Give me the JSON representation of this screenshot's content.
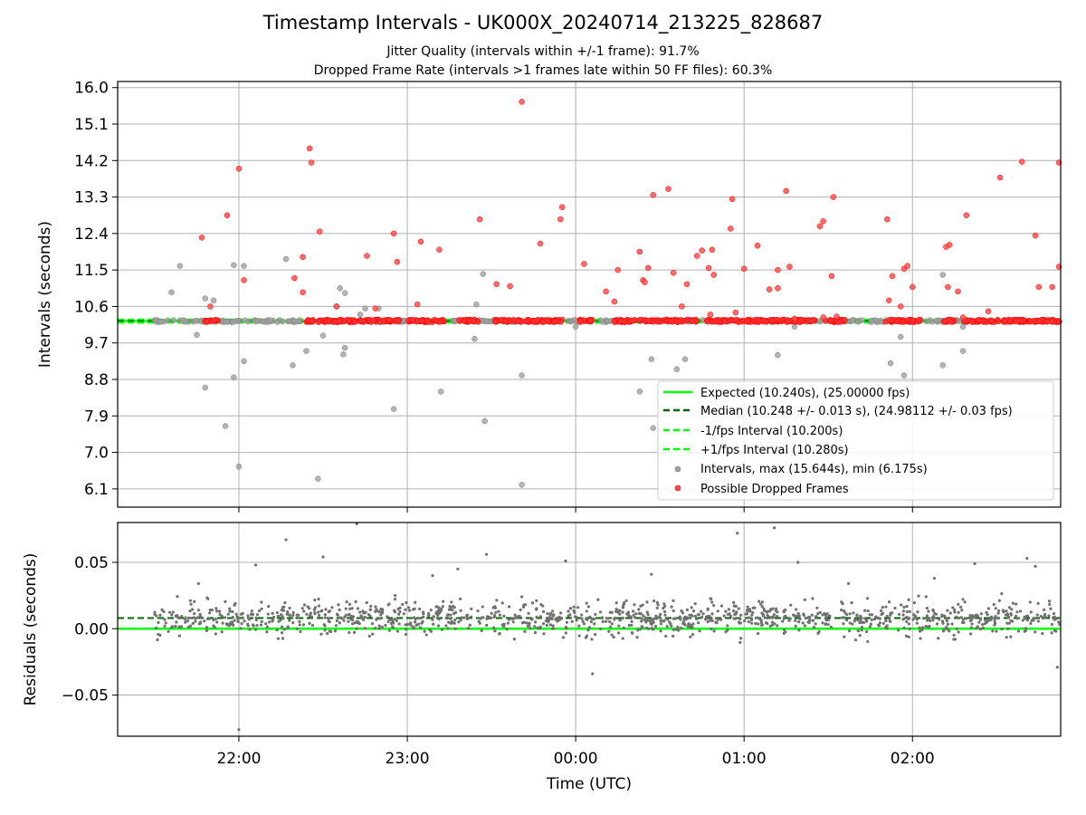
{
  "title": "Timestamp Intervals - UK000X_20240714_213225_828687",
  "subtitle_1": "Jitter Quality (intervals within +/-1 frame): 91.7%",
  "subtitle_2": "Dropped Frame Rate (intervals >1 frames late within 50 FF files): 60.3%",
  "colors": {
    "expected": "#00ff00",
    "median": "#006400",
    "interval_bounds": "#00ff00",
    "intervals": "#a0a0a0",
    "dropped": "#ff0000",
    "residuals": "#707070",
    "grid": "#b0b0b0"
  },
  "chart_data": [
    {
      "type": "scatter",
      "ylabel": "Intervals (seconds)",
      "xlabel": "",
      "x_unit": "hours UTC (21.5 = 21:30; >24 = next day)",
      "xlim": [
        21.28,
        26.88
      ],
      "ylim": [
        5.65,
        16.15
      ],
      "y_ticks": [
        "6.1",
        "7.0",
        "7.9",
        "8.8",
        "9.7",
        "10.6",
        "11.5",
        "12.4",
        "13.3",
        "14.2",
        "15.1",
        "16.0"
      ],
      "grid": true,
      "legend_position": "lower right",
      "legend": [
        "Expected (10.240s), (25.00000 fps)",
        "Median (10.248 +/- 0.013 s), (24.98112 +/- 0.03 fps)",
        "-1/fps Interval (10.200s)",
        "+1/fps Interval (10.280s)",
        "Intervals, max (15.644s), min (6.175s)",
        "Possible Dropped Frames"
      ],
      "reference_lines": {
        "expected": 10.24,
        "median": 10.248,
        "minus_1_fps": 10.2,
        "plus_1_fps": 10.28
      },
      "series": [
        {
          "name": "Intervals, max (15.644s), min (6.175s)",
          "points": [
            [
              21.6,
              10.95
            ],
            [
              21.65,
              11.6
            ],
            [
              21.75,
              9.9
            ],
            [
              21.8,
              8.6
            ],
            [
              21.8,
              10.8
            ],
            [
              21.85,
              10.75
            ],
            [
              21.92,
              7.65
            ],
            [
              21.97,
              11.62
            ],
            [
              21.97,
              8.85
            ],
            [
              22.0,
              6.65
            ],
            [
              22.03,
              11.6
            ],
            [
              22.03,
              9.25
            ],
            [
              22.28,
              11.77
            ],
            [
              22.32,
              9.15
            ],
            [
              22.4,
              9.5
            ],
            [
              22.47,
              6.35
            ],
            [
              22.5,
              9.88
            ],
            [
              22.58,
              10.6
            ],
            [
              22.6,
              11.05
            ],
            [
              22.62,
              9.42
            ],
            [
              22.63,
              9.58
            ],
            [
              22.63,
              10.93
            ],
            [
              22.72,
              10.4
            ],
            [
              22.75,
              10.55
            ],
            [
              22.83,
              10.55
            ],
            [
              22.92,
              8.07
            ],
            [
              23.2,
              8.5
            ],
            [
              23.4,
              9.8
            ],
            [
              23.41,
              10.65
            ],
            [
              23.45,
              11.4
            ],
            [
              23.46,
              7.77
            ],
            [
              23.68,
              8.9
            ],
            [
              23.68,
              6.2
            ],
            [
              24.0,
              10.1
            ],
            [
              24.38,
              8.5
            ],
            [
              24.45,
              9.3
            ],
            [
              24.46,
              7.6
            ],
            [
              24.6,
              9.05
            ],
            [
              24.65,
              9.3
            ],
            [
              25.2,
              9.4
            ],
            [
              25.3,
              10.1
            ],
            [
              25.87,
              9.2
            ],
            [
              25.93,
              9.85
            ],
            [
              25.95,
              8.9
            ],
            [
              26.18,
              9.15
            ],
            [
              26.18,
              11.38
            ],
            [
              26.3,
              9.5
            ],
            [
              26.3,
              10.1
            ]
          ]
        },
        {
          "name": "Possible Dropped Frames",
          "points": [
            [
              21.78,
              12.3
            ],
            [
              21.83,
              10.6
            ],
            [
              21.93,
              12.85
            ],
            [
              22.0,
              14.0
            ],
            [
              22.03,
              11.25
            ],
            [
              22.33,
              11.3
            ],
            [
              22.38,
              10.95
            ],
            [
              22.38,
              11.82
            ],
            [
              22.42,
              14.5
            ],
            [
              22.43,
              14.15
            ],
            [
              22.48,
              12.45
            ],
            [
              22.58,
              10.6
            ],
            [
              22.76,
              11.85
            ],
            [
              22.81,
              10.55
            ],
            [
              22.92,
              12.4
            ],
            [
              22.94,
              11.7
            ],
            [
              23.06,
              10.65
            ],
            [
              23.08,
              12.2
            ],
            [
              23.19,
              12.0
            ],
            [
              23.43,
              12.75
            ],
            [
              23.53,
              11.15
            ],
            [
              23.61,
              11.1
            ],
            [
              23.68,
              15.65
            ],
            [
              23.79,
              12.15
            ],
            [
              23.91,
              12.75
            ],
            [
              23.92,
              13.05
            ],
            [
              24.05,
              11.65
            ],
            [
              24.18,
              10.97
            ],
            [
              24.23,
              10.72
            ],
            [
              24.25,
              11.5
            ],
            [
              24.38,
              11.95
            ],
            [
              24.4,
              11.25
            ],
            [
              24.41,
              11.2
            ],
            [
              24.43,
              11.55
            ],
            [
              24.46,
              13.35
            ],
            [
              24.55,
              13.5
            ],
            [
              24.58,
              11.43
            ],
            [
              24.63,
              10.6
            ],
            [
              24.66,
              11.15
            ],
            [
              24.72,
              11.85
            ],
            [
              24.75,
              11.98
            ],
            [
              24.79,
              11.55
            ],
            [
              24.81,
              12.0
            ],
            [
              24.82,
              11.38
            ],
            [
              24.8,
              10.4
            ],
            [
              24.92,
              12.52
            ],
            [
              24.93,
              13.25
            ],
            [
              24.95,
              10.45
            ],
            [
              25.0,
              11.53
            ],
            [
              25.08,
              12.1
            ],
            [
              25.15,
              11.02
            ],
            [
              25.2,
              11.5
            ],
            [
              25.2,
              11.05
            ],
            [
              25.25,
              13.45
            ],
            [
              25.27,
              11.58
            ],
            [
              25.3,
              10.3
            ],
            [
              25.45,
              12.58
            ],
            [
              25.47,
              12.7
            ],
            [
              25.53,
              13.3
            ],
            [
              25.52,
              11.35
            ],
            [
              25.47,
              10.33
            ],
            [
              25.55,
              10.35
            ],
            [
              25.85,
              12.75
            ],
            [
              25.86,
              10.75
            ],
            [
              25.88,
              11.35
            ],
            [
              25.93,
              10.6
            ],
            [
              25.95,
              11.53
            ],
            [
              25.97,
              11.6
            ],
            [
              26.0,
              11.08
            ],
            [
              26.2,
              12.07
            ],
            [
              26.22,
              12.12
            ],
            [
              26.21,
              11.08
            ],
            [
              26.27,
              10.97
            ],
            [
              26.3,
              10.33
            ],
            [
              26.32,
              12.85
            ],
            [
              26.45,
              10.48
            ],
            [
              26.52,
              13.78
            ],
            [
              26.65,
              14.17
            ],
            [
              26.73,
              12.35
            ],
            [
              26.75,
              11.08
            ],
            [
              26.83,
              11.08
            ],
            [
              26.87,
              11.58
            ],
            [
              26.95,
              14.15
            ]
          ]
        }
      ]
    },
    {
      "type": "scatter",
      "ylabel": "Residuals (seconds)",
      "xlabel": "Time (UTC)",
      "xlim": [
        21.28,
        26.88
      ],
      "ylim": [
        -0.081,
        0.08
      ],
      "y_ticks": [
        "−0.05",
        "0.00",
        "0.05"
      ],
      "x_ticks": [
        "22:00",
        "23:00",
        "00:00",
        "01:00",
        "02:00"
      ],
      "grid": true,
      "reference_lines": {
        "zero": 0.0,
        "median_offset": 0.008
      },
      "series": [
        {
          "name": "",
          "points": [
            [
              21.76,
              0.034
            ],
            [
              22.0,
              -0.076
            ],
            [
              22.1,
              0.048
            ],
            [
              22.28,
              0.067
            ],
            [
              22.5,
              0.054
            ],
            [
              22.7,
              0.079
            ],
            [
              23.15,
              0.04
            ],
            [
              23.3,
              0.045
            ],
            [
              23.47,
              0.056
            ],
            [
              23.68,
              0.024
            ],
            [
              23.94,
              0.051
            ],
            [
              24.1,
              -0.034
            ],
            [
              24.45,
              0.041
            ],
            [
              24.96,
              0.072
            ],
            [
              25.18,
              0.076
            ],
            [
              25.32,
              0.05
            ],
            [
              25.62,
              0.034
            ],
            [
              26.13,
              0.038
            ],
            [
              26.37,
              0.049
            ],
            [
              26.68,
              0.053
            ],
            [
              26.73,
              0.047
            ],
            [
              26.86,
              -0.029
            ]
          ],
          "bulk_band": {
            "x_range": [
              21.5,
              26.88
            ],
            "y_center": 0.008,
            "y_spread": 0.022,
            "approx_count": 1200
          }
        }
      ]
    }
  ]
}
